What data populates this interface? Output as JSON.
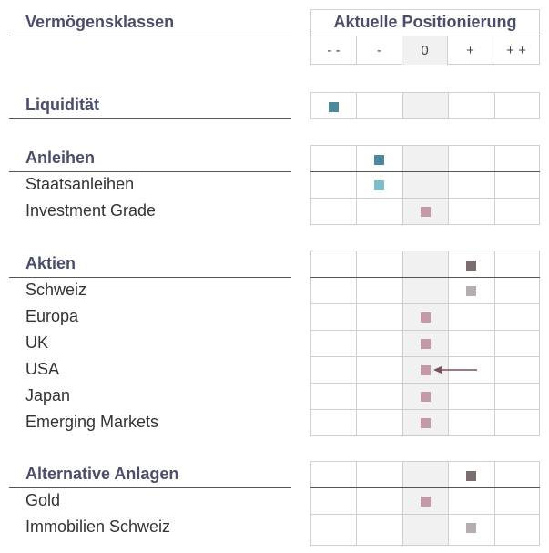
{
  "header": {
    "asset_classes_label": "Vermögensklassen",
    "positioning_label": "Aktuelle Positionierung",
    "scale": [
      "- -",
      "-",
      "0",
      "+",
      "+ +"
    ]
  },
  "groups": [
    {
      "name": "Liquidität",
      "marker_color": "#4a8a99",
      "group_position": 0,
      "items": []
    },
    {
      "name": "Anleihen",
      "marker_color": "#4a8a99",
      "group_position": 1,
      "items": [
        {
          "name": "Staatsanleihen",
          "position": 1,
          "marker_color": "#7cbfc8"
        },
        {
          "name": "Investment Grade",
          "position": 2,
          "marker_color": "#c49aa6"
        }
      ]
    },
    {
      "name": "Aktien",
      "marker_color": "#7a6e6e",
      "group_position": 3,
      "items": [
        {
          "name": "Schweiz",
          "position": 3,
          "marker_color": "#b5adad"
        },
        {
          "name": "Europa",
          "position": 2,
          "marker_color": "#c49aa6"
        },
        {
          "name": "UK",
          "position": 2,
          "marker_color": "#c49aa6"
        },
        {
          "name": "USA",
          "position": 2,
          "marker_color": "#c49aa6",
          "change_arrow": "from +"
        },
        {
          "name": "Japan",
          "position": 2,
          "marker_color": "#c49aa6"
        },
        {
          "name": "Emerging Markets",
          "position": 2,
          "marker_color": "#c49aa6"
        }
      ]
    },
    {
      "name": "Alternative Anlagen",
      "marker_color": "#7a6e6e",
      "group_position": 3,
      "items": [
        {
          "name": "Gold",
          "position": 2,
          "marker_color": "#c49aa6"
        },
        {
          "name": "Immobilien Schweiz",
          "position": 3,
          "marker_color": "#b5adad"
        }
      ]
    }
  ],
  "colors": {
    "heading": "#4a4e6a",
    "arrow": "#7a4f5a",
    "neutral_column": "#f1f1f1",
    "grid": "#cfcfcf"
  }
}
